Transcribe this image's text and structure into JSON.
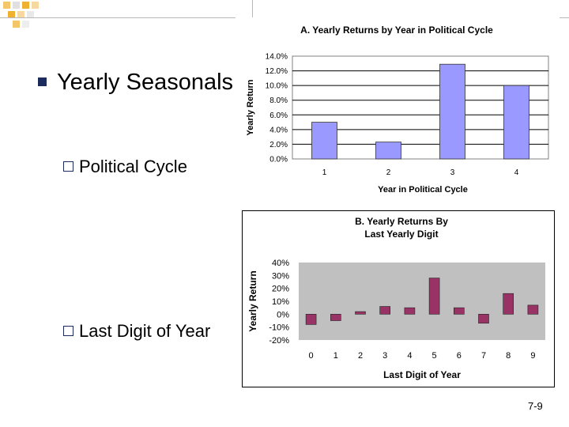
{
  "slide": {
    "heading": "Yearly Seasonals",
    "sub1": "Political Cycle",
    "sub2": "Last Digit of Year",
    "page_number": "7-9"
  },
  "colors": {
    "bullet": "#1c2a5c",
    "chart_a_bar": "#9999ff",
    "chart_b_bar": "#993366",
    "plot_bg_b": "#c0c0c0",
    "deco": "#f0b030"
  },
  "chart_data": [
    {
      "type": "bar",
      "title": "A. Yearly Returns by Year in Political Cycle",
      "xlabel": "Year in Political Cycle",
      "ylabel": "Yearly Return",
      "categories": [
        "1",
        "2",
        "3",
        "4"
      ],
      "values": [
        5.0,
        2.3,
        12.9,
        10.0
      ],
      "ylim": [
        0,
        14
      ],
      "yticks": [
        "0.0%",
        "2.0%",
        "4.0%",
        "6.0%",
        "8.0%",
        "10.0%",
        "12.0%",
        "14.0%"
      ],
      "grid": true
    },
    {
      "type": "bar",
      "title_lines": [
        "B. Yearly Returns By",
        "Last Yearly Digit"
      ],
      "xlabel": "Last Digit of Year",
      "ylabel": "Yearly Return",
      "categories": [
        "0",
        "1",
        "2",
        "3",
        "4",
        "5",
        "6",
        "7",
        "8",
        "9"
      ],
      "values": [
        -8,
        -5,
        2,
        6,
        5,
        28,
        5,
        -7,
        16,
        7
      ],
      "ylim": [
        -20,
        40
      ],
      "yticks": [
        "-20%",
        "-10%",
        "0%",
        "10%",
        "20%",
        "30%",
        "40%"
      ],
      "grid": false
    }
  ]
}
